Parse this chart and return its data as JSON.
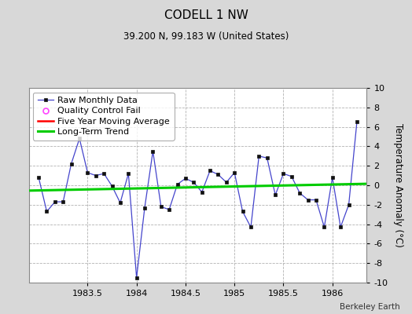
{
  "title": "CODELL 1 NW",
  "subtitle": "39.200 N, 99.183 W (United States)",
  "credit": "Berkeley Earth",
  "ylabel": "Temperature Anomaly (°C)",
  "ylim": [
    -10,
    10
  ],
  "yticks": [
    -10,
    -8,
    -6,
    -4,
    -2,
    0,
    2,
    4,
    6,
    8,
    10
  ],
  "xlim": [
    1982.9,
    1986.35
  ],
  "xticks": [
    1983.5,
    1984.0,
    1984.5,
    1985.0,
    1985.5,
    1986.0
  ],
  "xticklabels": [
    "1983.5",
    "1984",
    "1984.5",
    "1985",
    "1985.5",
    "1986"
  ],
  "raw_x": [
    1983.0,
    1983.083,
    1983.167,
    1983.25,
    1983.333,
    1983.417,
    1983.5,
    1983.583,
    1983.667,
    1983.75,
    1983.833,
    1983.917,
    1984.0,
    1984.083,
    1984.167,
    1984.25,
    1984.333,
    1984.417,
    1984.5,
    1984.583,
    1984.667,
    1984.75,
    1984.833,
    1984.917,
    1985.0,
    1985.083,
    1985.167,
    1985.25,
    1985.333,
    1985.417,
    1985.5,
    1985.583,
    1985.667,
    1985.75,
    1985.833,
    1985.917,
    1986.0,
    1986.083,
    1986.167,
    1986.25
  ],
  "raw_y": [
    0.8,
    -2.7,
    -1.7,
    -1.7,
    2.2,
    4.8,
    1.3,
    1.0,
    1.2,
    -0.1,
    -1.8,
    1.2,
    -9.5,
    -2.3,
    3.5,
    -2.2,
    -2.5,
    0.1,
    0.7,
    0.3,
    -0.7,
    1.5,
    1.1,
    0.3,
    1.3,
    -2.7,
    -4.3,
    3.0,
    2.8,
    -1.0,
    1.2,
    0.9,
    -0.8,
    -1.5,
    -1.5,
    -4.3,
    0.8,
    -4.3,
    -2.0,
    6.5
  ],
  "trend_x": [
    1982.9,
    1986.35
  ],
  "trend_y": [
    -0.55,
    0.15
  ],
  "raw_color": "#4444cc",
  "raw_marker_color": "#111111",
  "trend_color": "#00cc00",
  "mavg_color": "#ff0000",
  "qc_color": "#ff44ff",
  "background_color": "#d8d8d8",
  "plot_bg_color": "#ffffff",
  "grid_color": "#aaaaaa",
  "title_fontsize": 11,
  "subtitle_fontsize": 8.5,
  "legend_fontsize": 8,
  "axis_fontsize": 8,
  "credit_fontsize": 7.5
}
